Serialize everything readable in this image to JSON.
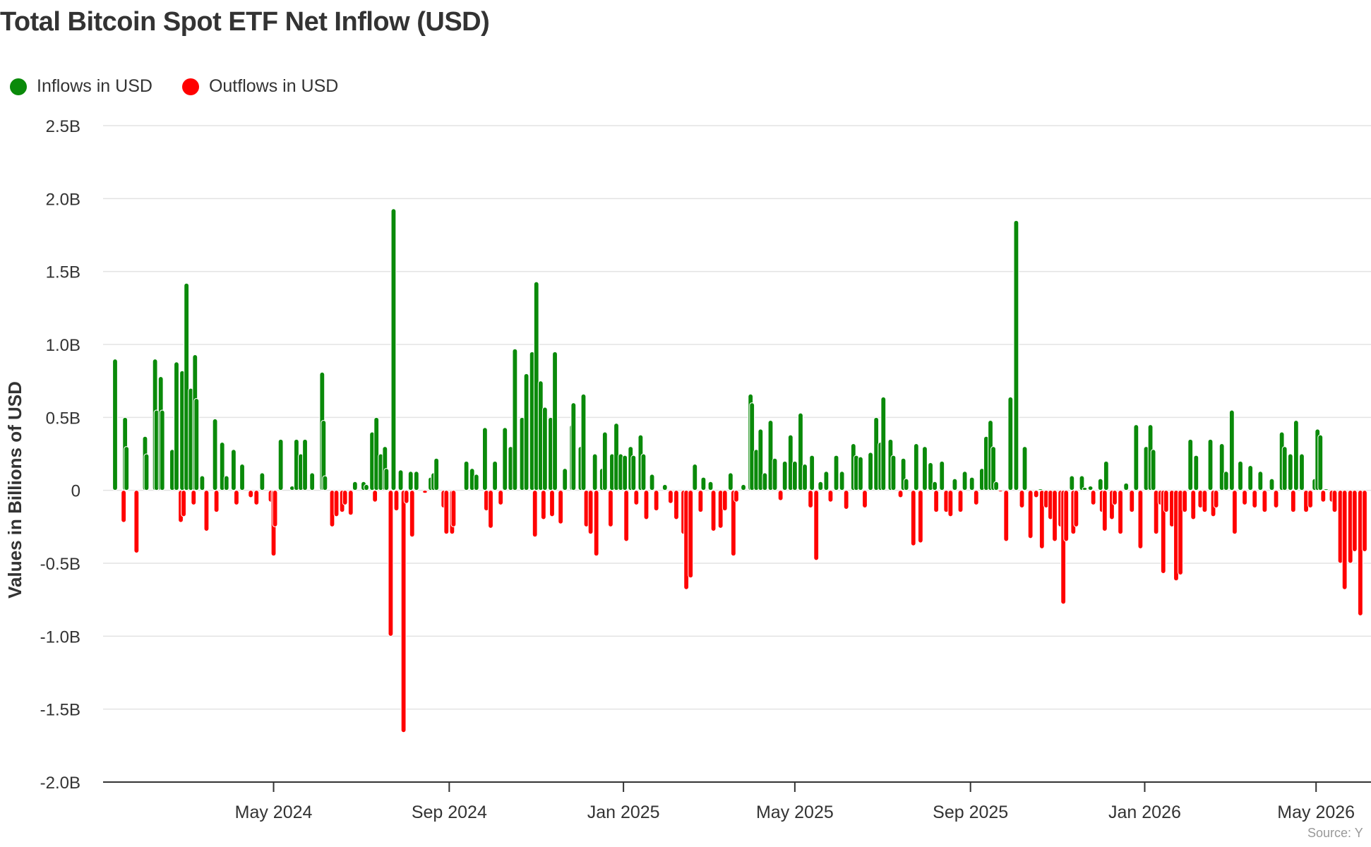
{
  "chart_data": {
    "type": "bar",
    "title": "Total Bitcoin Spot ETF Net Inflow (USD)",
    "ylabel": "Values in Billions of USD",
    "xlabel": "",
    "ylim": [
      -2.0,
      2.5
    ],
    "yticks": [
      {
        "value": 2.5,
        "label": "2.5B"
      },
      {
        "value": 2.0,
        "label": "2.0B"
      },
      {
        "value": 1.5,
        "label": "1.5B"
      },
      {
        "value": 1.0,
        "label": "1.0B"
      },
      {
        "value": 0.5,
        "label": "0.5B"
      },
      {
        "value": 0,
        "label": "0"
      },
      {
        "value": -0.5,
        "label": "-0.5B"
      },
      {
        "value": -1.0,
        "label": "-1.0B"
      },
      {
        "value": -1.5,
        "label": "-1.5B"
      },
      {
        "value": -2.0,
        "label": "-2.0B"
      }
    ],
    "xrange": [
      "2024-01-11",
      "2026-06-05"
    ],
    "xticks": [
      {
        "date": "2024-05-01",
        "label": "May 2024"
      },
      {
        "date": "2024-09-01",
        "label": "Sep 2024"
      },
      {
        "date": "2025-01-01",
        "label": "Jan 2025"
      },
      {
        "date": "2025-05-01",
        "label": "May 2025"
      },
      {
        "date": "2025-09-01",
        "label": "Sep 2025"
      },
      {
        "date": "2026-01-01",
        "label": "Jan 2026"
      },
      {
        "date": "2026-05-01",
        "label": "May 2026"
      }
    ],
    "grid": true,
    "legend_position": "top-left",
    "series": [
      {
        "name": "Inflows in USD",
        "color": "#0a8a0a"
      },
      {
        "name": "Outflows in USD",
        "color": "#ff0000"
      }
    ],
    "points": [
      [
        "2024-01-11",
        0.9
      ],
      [
        "2024-01-17",
        -0.22
      ],
      [
        "2024-01-18",
        0.5
      ],
      [
        "2024-01-19",
        0.3
      ],
      [
        "2024-01-26",
        -0.43
      ],
      [
        "2024-02-01",
        0.37
      ],
      [
        "2024-02-02",
        0.25
      ],
      [
        "2024-02-08",
        0.9
      ],
      [
        "2024-02-09",
        0.55
      ],
      [
        "2024-02-12",
        0.78
      ],
      [
        "2024-02-13",
        0.55
      ],
      [
        "2024-02-20",
        0.28
      ],
      [
        "2024-02-23",
        0.88
      ],
      [
        "2024-02-26",
        -0.22
      ],
      [
        "2024-02-27",
        0.82
      ],
      [
        "2024-02-28",
        -0.18
      ],
      [
        "2024-03-01",
        1.42
      ],
      [
        "2024-03-04",
        0.7
      ],
      [
        "2024-03-06",
        -0.1
      ],
      [
        "2024-03-07",
        0.93
      ],
      [
        "2024-03-08",
        0.63
      ],
      [
        "2024-03-12",
        0.1
      ],
      [
        "2024-03-15",
        -0.28
      ],
      [
        "2024-03-21",
        0.49
      ],
      [
        "2024-03-22",
        -0.15
      ],
      [
        "2024-03-26",
        0.33
      ],
      [
        "2024-03-29",
        0.1
      ],
      [
        "2024-04-03",
        0.28
      ],
      [
        "2024-04-05",
        -0.1
      ],
      [
        "2024-04-09",
        0.18
      ],
      [
        "2024-04-15",
        -0.05
      ],
      [
        "2024-04-19",
        -0.1
      ],
      [
        "2024-04-23",
        0.12
      ],
      [
        "2024-04-29",
        -0.08
      ],
      [
        "2024-05-01",
        -0.45
      ],
      [
        "2024-05-02",
        -0.25
      ],
      [
        "2024-05-06",
        0.35
      ],
      [
        "2024-05-14",
        0.03
      ],
      [
        "2024-05-17",
        0.35
      ],
      [
        "2024-05-20",
        0.25
      ],
      [
        "2024-05-23",
        0.35
      ],
      [
        "2024-05-28",
        0.12
      ],
      [
        "2024-06-04",
        0.81
      ],
      [
        "2024-06-05",
        0.48
      ],
      [
        "2024-06-06",
        0.1
      ],
      [
        "2024-06-11",
        -0.25
      ],
      [
        "2024-06-14",
        -0.18
      ],
      [
        "2024-06-18",
        -0.15
      ],
      [
        "2024-06-20",
        -0.1
      ],
      [
        "2024-06-24",
        -0.17
      ],
      [
        "2024-06-27",
        0.06
      ],
      [
        "2024-07-03",
        0.06
      ],
      [
        "2024-07-05",
        0.04
      ],
      [
        "2024-07-09",
        0.4
      ],
      [
        "2024-07-11",
        -0.08
      ],
      [
        "2024-07-12",
        0.5
      ],
      [
        "2024-07-15",
        0.25
      ],
      [
        "2024-07-18",
        0.3
      ],
      [
        "2024-07-19",
        0.15
      ],
      [
        "2024-07-22",
        -1.0
      ],
      [
        "2024-07-24",
        1.93
      ],
      [
        "2024-07-26",
        -0.14
      ],
      [
        "2024-07-29",
        0.14
      ],
      [
        "2024-07-31",
        -1.66
      ],
      [
        "2024-08-02",
        -0.09
      ],
      [
        "2024-08-05",
        0.13
      ],
      [
        "2024-08-06",
        -0.32
      ],
      [
        "2024-08-09",
        0.13
      ],
      [
        "2024-08-15",
        -0.02
      ],
      [
        "2024-08-19",
        0.09
      ],
      [
        "2024-08-21",
        0.12
      ],
      [
        "2024-08-23",
        0.22
      ],
      [
        "2024-08-28",
        -0.12
      ],
      [
        "2024-08-30",
        -0.3
      ],
      [
        "2024-09-03",
        -0.3
      ],
      [
        "2024-09-04",
        -0.25
      ],
      [
        "2024-09-13",
        0.2
      ],
      [
        "2024-09-17",
        0.15
      ],
      [
        "2024-09-20",
        0.11
      ],
      [
        "2024-09-26",
        0.43
      ],
      [
        "2024-09-27",
        -0.14
      ],
      [
        "2024-09-30",
        -0.26
      ],
      [
        "2024-10-03",
        0.2
      ],
      [
        "2024-10-07",
        -0.1
      ],
      [
        "2024-10-10",
        0.43
      ],
      [
        "2024-10-14",
        0.3
      ],
      [
        "2024-10-17",
        0.97
      ],
      [
        "2024-10-22",
        0.5
      ],
      [
        "2024-10-25",
        0.8
      ],
      [
        "2024-10-29",
        0.95
      ],
      [
        "2024-10-31",
        -0.32
      ],
      [
        "2024-11-01",
        1.43
      ],
      [
        "2024-11-04",
        0.75
      ],
      [
        "2024-11-06",
        -0.2
      ],
      [
        "2024-11-07",
        0.57
      ],
      [
        "2024-11-11",
        0.5
      ],
      [
        "2024-11-12",
        -0.18
      ],
      [
        "2024-11-14",
        0.95
      ],
      [
        "2024-11-18",
        -0.23
      ],
      [
        "2024-11-21",
        0.15
      ],
      [
        "2024-11-26",
        0.45
      ],
      [
        "2024-11-27",
        0.6
      ],
      [
        "2024-12-02",
        0.3
      ],
      [
        "2024-12-04",
        0.66
      ],
      [
        "2024-12-06",
        -0.25
      ],
      [
        "2024-12-09",
        -0.3
      ],
      [
        "2024-12-12",
        0.25
      ],
      [
        "2024-12-13",
        -0.45
      ],
      [
        "2024-12-17",
        0.15
      ],
      [
        "2024-12-19",
        0.4
      ],
      [
        "2024-12-23",
        -0.25
      ],
      [
        "2024-12-24",
        0.25
      ],
      [
        "2024-12-27",
        0.46
      ],
      [
        "2024-12-30",
        0.25
      ],
      [
        "2025-01-02",
        0.24
      ],
      [
        "2025-01-03",
        -0.35
      ],
      [
        "2025-01-06",
        0.3
      ],
      [
        "2025-01-08",
        0.24
      ],
      [
        "2025-01-10",
        -0.1
      ],
      [
        "2025-01-13",
        0.38
      ],
      [
        "2025-01-15",
        0.25
      ],
      [
        "2025-01-17",
        -0.2
      ],
      [
        "2025-01-21",
        0.11
      ],
      [
        "2025-01-24",
        -0.14
      ],
      [
        "2025-01-30",
        0.04
      ],
      [
        "2025-02-03",
        -0.09
      ],
      [
        "2025-02-07",
        -0.2
      ],
      [
        "2025-02-12",
        -0.3
      ],
      [
        "2025-02-14",
        -0.68
      ],
      [
        "2025-02-17",
        -0.6
      ],
      [
        "2025-02-20",
        0.18
      ],
      [
        "2025-02-24",
        -0.15
      ],
      [
        "2025-02-26",
        0.09
      ],
      [
        "2025-03-03",
        0.06
      ],
      [
        "2025-03-05",
        -0.28
      ],
      [
        "2025-03-10",
        -0.26
      ],
      [
        "2025-03-13",
        -0.14
      ],
      [
        "2025-03-17",
        0.12
      ],
      [
        "2025-03-19",
        -0.45
      ],
      [
        "2025-03-21",
        -0.08
      ],
      [
        "2025-03-26",
        0.04
      ],
      [
        "2025-03-31",
        0.66
      ],
      [
        "2025-04-01",
        0.6
      ],
      [
        "2025-04-04",
        0.28
      ],
      [
        "2025-04-07",
        0.42
      ],
      [
        "2025-04-10",
        0.12
      ],
      [
        "2025-04-14",
        0.48
      ],
      [
        "2025-04-17",
        0.22
      ],
      [
        "2025-04-21",
        -0.07
      ],
      [
        "2025-04-24",
        0.2
      ],
      [
        "2025-04-28",
        0.38
      ],
      [
        "2025-05-01",
        0.2
      ],
      [
        "2025-05-05",
        0.53
      ],
      [
        "2025-05-08",
        0.18
      ],
      [
        "2025-05-12",
        -0.12
      ],
      [
        "2025-05-13",
        0.24
      ],
      [
        "2025-05-16",
        -0.48
      ],
      [
        "2025-05-19",
        0.06
      ],
      [
        "2025-05-23",
        0.13
      ],
      [
        "2025-05-26",
        -0.08
      ],
      [
        "2025-05-30",
        0.24
      ],
      [
        "2025-06-03",
        0.13
      ],
      [
        "2025-06-06",
        -0.13
      ],
      [
        "2025-06-11",
        0.32
      ],
      [
        "2025-06-13",
        0.24
      ],
      [
        "2025-06-16",
        0.23
      ],
      [
        "2025-06-19",
        -0.12
      ],
      [
        "2025-06-23",
        0.26
      ],
      [
        "2025-06-27",
        0.5
      ],
      [
        "2025-06-30",
        0.33
      ],
      [
        "2025-07-02",
        0.64
      ],
      [
        "2025-07-07",
        0.35
      ],
      [
        "2025-07-09",
        0.24
      ],
      [
        "2025-07-14",
        -0.05
      ],
      [
        "2025-07-16",
        0.22
      ],
      [
        "2025-07-18",
        0.08
      ],
      [
        "2025-07-23",
        -0.38
      ],
      [
        "2025-07-25",
        0.32
      ],
      [
        "2025-07-28",
        -0.36
      ],
      [
        "2025-07-31",
        0.3
      ],
      [
        "2025-08-04",
        0.19
      ],
      [
        "2025-08-07",
        0.06
      ],
      [
        "2025-08-08",
        -0.15
      ],
      [
        "2025-08-12",
        0.2
      ],
      [
        "2025-08-15",
        -0.15
      ],
      [
        "2025-08-18",
        -0.18
      ],
      [
        "2025-08-21",
        0.08
      ],
      [
        "2025-08-25",
        -0.15
      ],
      [
        "2025-08-28",
        0.13
      ],
      [
        "2025-09-02",
        0.09
      ],
      [
        "2025-09-05",
        -0.1
      ],
      [
        "2025-09-09",
        0.15
      ],
      [
        "2025-09-12",
        0.37
      ],
      [
        "2025-09-15",
        0.48
      ],
      [
        "2025-09-17",
        0.3
      ],
      [
        "2025-09-19",
        0.06
      ],
      [
        "2025-09-22",
        -0.01
      ],
      [
        "2025-09-26",
        -0.35
      ],
      [
        "2025-09-29",
        0.64
      ],
      [
        "2025-10-03",
        1.85
      ],
      [
        "2025-10-07",
        -0.12
      ],
      [
        "2025-10-09",
        0.3
      ],
      [
        "2025-10-13",
        -0.33
      ],
      [
        "2025-10-17",
        -0.05
      ],
      [
        "2025-10-20",
        0.01
      ],
      [
        "2025-10-21",
        -0.4
      ],
      [
        "2025-10-24",
        -0.12
      ],
      [
        "2025-10-27",
        -0.2
      ],
      [
        "2025-10-30",
        -0.35
      ],
      [
        "2025-11-03",
        -0.25
      ],
      [
        "2025-11-05",
        -0.78
      ],
      [
        "2025-11-07",
        -0.35
      ],
      [
        "2025-11-11",
        0.1
      ],
      [
        "2025-11-12",
        -0.3
      ],
      [
        "2025-11-14",
        -0.25
      ],
      [
        "2025-11-18",
        0.1
      ],
      [
        "2025-11-20",
        0.02
      ],
      [
        "2025-11-24",
        0.03
      ],
      [
        "2025-11-26",
        -0.1
      ],
      [
        "2025-12-01",
        0.08
      ],
      [
        "2025-12-02",
        -0.15
      ],
      [
        "2025-12-04",
        -0.28
      ],
      [
        "2025-12-05",
        0.2
      ],
      [
        "2025-12-09",
        -0.2
      ],
      [
        "2025-12-11",
        -0.1
      ],
      [
        "2025-12-15",
        -0.3
      ],
      [
        "2025-12-19",
        0.05
      ],
      [
        "2025-12-23",
        -0.15
      ],
      [
        "2025-12-26",
        0.45
      ],
      [
        "2025-12-29",
        -0.4
      ],
      [
        "2026-01-02",
        0.3
      ],
      [
        "2026-01-05",
        0.45
      ],
      [
        "2026-01-07",
        0.28
      ],
      [
        "2026-01-09",
        -0.3
      ],
      [
        "2026-01-12",
        -0.1
      ],
      [
        "2026-01-14",
        -0.57
      ],
      [
        "2026-01-16",
        -0.15
      ],
      [
        "2026-01-20",
        -0.25
      ],
      [
        "2026-01-23",
        -0.62
      ],
      [
        "2026-01-26",
        -0.58
      ],
      [
        "2026-01-29",
        -0.15
      ],
      [
        "2026-02-02",
        0.35
      ],
      [
        "2026-02-04",
        -0.2
      ],
      [
        "2026-02-06",
        0.24
      ],
      [
        "2026-02-09",
        -0.12
      ],
      [
        "2026-02-12",
        -0.15
      ],
      [
        "2026-02-16",
        0.35
      ],
      [
        "2026-02-18",
        -0.18
      ],
      [
        "2026-02-20",
        -0.12
      ],
      [
        "2026-02-24",
        0.32
      ],
      [
        "2026-02-27",
        0.13
      ],
      [
        "2026-03-03",
        0.55
      ],
      [
        "2026-03-05",
        -0.3
      ],
      [
        "2026-03-09",
        0.2
      ],
      [
        "2026-03-12",
        -0.1
      ],
      [
        "2026-03-16",
        0.17
      ],
      [
        "2026-03-19",
        -0.12
      ],
      [
        "2026-03-23",
        0.13
      ],
      [
        "2026-03-26",
        -0.15
      ],
      [
        "2026-03-31",
        0.08
      ],
      [
        "2026-04-03",
        -0.12
      ],
      [
        "2026-04-07",
        0.4
      ],
      [
        "2026-04-09",
        0.3
      ],
      [
        "2026-04-13",
        0.25
      ],
      [
        "2026-04-15",
        -0.15
      ],
      [
        "2026-04-17",
        0.48
      ],
      [
        "2026-04-21",
        0.25
      ],
      [
        "2026-04-24",
        -0.15
      ],
      [
        "2026-04-27",
        -0.12
      ],
      [
        "2026-04-30",
        0.08
      ],
      [
        "2026-05-02",
        0.42
      ],
      [
        "2026-05-04",
        0.38
      ],
      [
        "2026-05-06",
        -0.08
      ],
      [
        "2026-05-08",
        0.01
      ],
      [
        "2026-05-12",
        -0.08
      ],
      [
        "2026-05-14",
        -0.15
      ],
      [
        "2026-05-18",
        -0.5
      ],
      [
        "2026-05-21",
        -0.68
      ],
      [
        "2026-05-25",
        -0.5
      ],
      [
        "2026-05-28",
        -0.42
      ],
      [
        "2026-06-01",
        -0.86
      ],
      [
        "2026-06-04",
        -0.42
      ]
    ]
  },
  "source_note": "Source: Y"
}
